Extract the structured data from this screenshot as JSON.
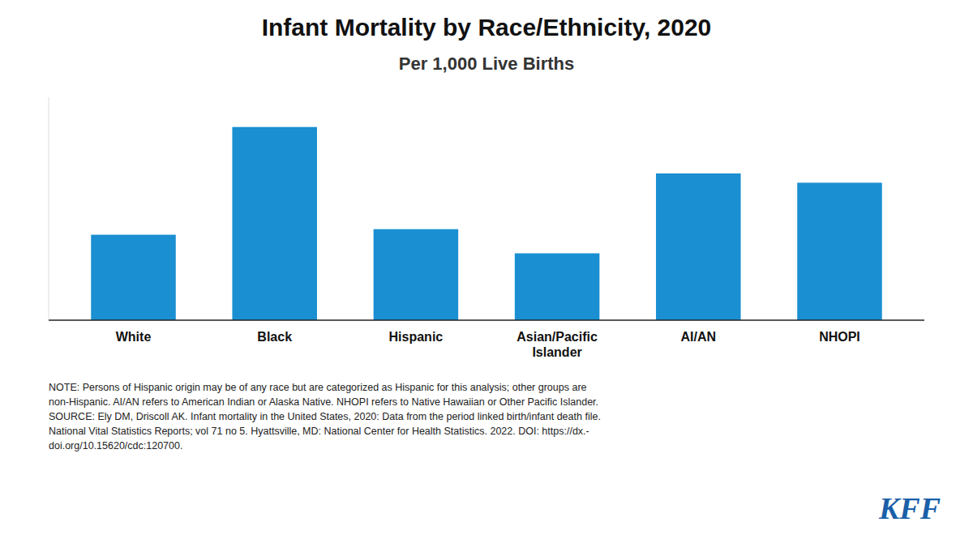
{
  "chart_data": {
    "type": "bar",
    "title": "Infant Mortality by Race/Ethnicity, 2020",
    "subtitle": "Per 1,000 Live Births",
    "categories": [
      "White",
      "Black",
      "Hispanic",
      "Asian/Pacific\nIslander",
      "AI/AN",
      "NHOPI"
    ],
    "values": [
      4.6,
      10.4,
      4.9,
      3.6,
      7.9,
      7.4
    ],
    "color": "#1a8fd1",
    "ylim": [
      0,
      12
    ],
    "tick_labels": "x",
    "grid": false,
    "note": "NOTE: Persons of Hispanic origin may be of any race but are categorized as Hispanic for this analysis; other groups are\nnon-Hispanic. AI/AN refers to American Indian or Alaska Native. NHOPI refers to Native Hawaiian or Other Pacific Islander.\nSOURCE: Ely DM, Driscoll AK. Infant mortality in the United States, 2020: Data from the period linked birth/infant death file.\nNational Vital Statistics Reports; vol 71 no 5. Hyattsville, MD: National Center for Health Statistics. 2022. DOI: https://dx.-\ndoi.org/10.15620/cdc:120700.",
    "logo": "KFF"
  }
}
